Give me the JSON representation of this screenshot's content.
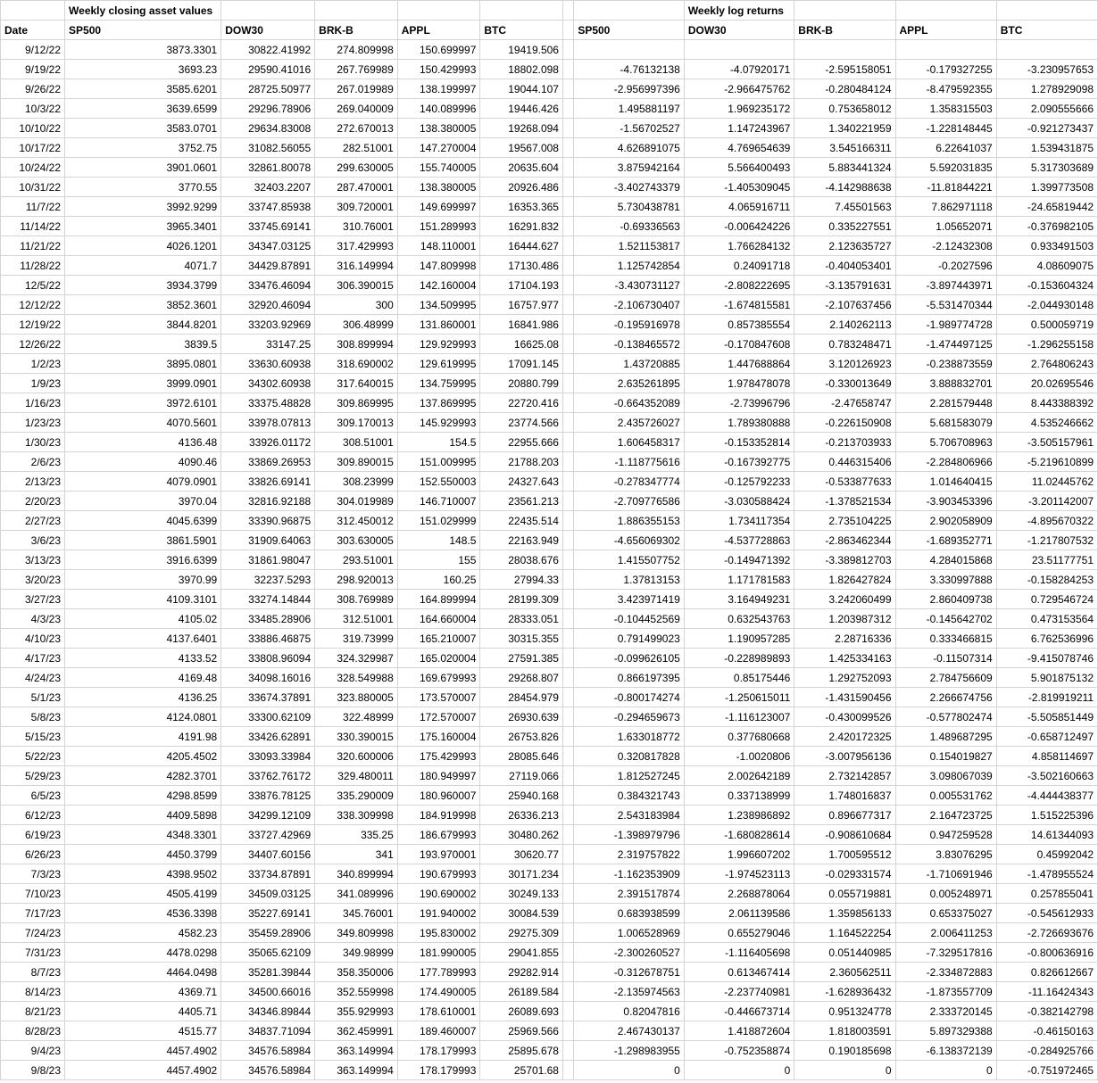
{
  "section_titles": {
    "closing": "Weekly closing asset values",
    "returns": "Weekly log returns"
  },
  "headers": {
    "date": "Date",
    "sp500": "SP500",
    "dow": "DOW30",
    "brk": "BRK-B",
    "appl": "APPL",
    "btc": "BTC"
  },
  "style": {
    "font_family": "Arial",
    "font_size_pt": 9,
    "header_font_weight": "bold",
    "grid_color": "#d4d4d4",
    "background_color": "#ffffff",
    "text_color": "#000000",
    "date_align": "right",
    "number_align": "right"
  },
  "rows": [
    {
      "date": "9/12/22",
      "c": [
        "3873.3301",
        "30822.41992",
        "274.809998",
        "150.699997",
        "19419.506"
      ],
      "r": [
        "",
        "",
        "",
        "",
        ""
      ]
    },
    {
      "date": "9/19/22",
      "c": [
        "3693.23",
        "29590.41016",
        "267.769989",
        "150.429993",
        "18802.098"
      ],
      "r": [
        "-4.76132138",
        "-4.07920171",
        "-2.595158051",
        "-0.179327255",
        "-3.230957653"
      ]
    },
    {
      "date": "9/26/22",
      "c": [
        "3585.6201",
        "28725.50977",
        "267.019989",
        "138.199997",
        "19044.107"
      ],
      "r": [
        "-2.956997396",
        "-2.966475762",
        "-0.280484124",
        "-8.479592355",
        "1.278929098"
      ]
    },
    {
      "date": "10/3/22",
      "c": [
        "3639.6599",
        "29296.78906",
        "269.040009",
        "140.089996",
        "19446.426"
      ],
      "r": [
        "1.495881197",
        "1.969235172",
        "0.753658012",
        "1.358315503",
        "2.090555666"
      ]
    },
    {
      "date": "10/10/22",
      "c": [
        "3583.0701",
        "29634.83008",
        "272.670013",
        "138.380005",
        "19268.094"
      ],
      "r": [
        "-1.56702527",
        "1.147243967",
        "1.340221959",
        "-1.228148445",
        "-0.921273437"
      ]
    },
    {
      "date": "10/17/22",
      "c": [
        "3752.75",
        "31082.56055",
        "282.51001",
        "147.270004",
        "19567.008"
      ],
      "r": [
        "4.626891075",
        "4.769654639",
        "3.545166311",
        "6.22641037",
        "1.539431875"
      ]
    },
    {
      "date": "10/24/22",
      "c": [
        "3901.0601",
        "32861.80078",
        "299.630005",
        "155.740005",
        "20635.604"
      ],
      "r": [
        "3.875942164",
        "5.566400493",
        "5.883441324",
        "5.592031835",
        "5.317303689"
      ]
    },
    {
      "date": "10/31/22",
      "c": [
        "3770.55",
        "32403.2207",
        "287.470001",
        "138.380005",
        "20926.486"
      ],
      "r": [
        "-3.402743379",
        "-1.405309045",
        "-4.142988638",
        "-11.81844221",
        "1.399773508"
      ]
    },
    {
      "date": "11/7/22",
      "c": [
        "3992.9299",
        "33747.85938",
        "309.720001",
        "149.699997",
        "16353.365"
      ],
      "r": [
        "5.730438781",
        "4.065916711",
        "7.45501563",
        "7.862971118",
        "-24.65819442"
      ]
    },
    {
      "date": "11/14/22",
      "c": [
        "3965.3401",
        "33745.69141",
        "310.76001",
        "151.289993",
        "16291.832"
      ],
      "r": [
        "-0.69336563",
        "-0.006424226",
        "0.335227551",
        "1.05652071",
        "-0.376982105"
      ]
    },
    {
      "date": "11/21/22",
      "c": [
        "4026.1201",
        "34347.03125",
        "317.429993",
        "148.110001",
        "16444.627"
      ],
      "r": [
        "1.521153817",
        "1.766284132",
        "2.123635727",
        "-2.12432308",
        "0.933491503"
      ]
    },
    {
      "date": "11/28/22",
      "c": [
        "4071.7",
        "34429.87891",
        "316.149994",
        "147.809998",
        "17130.486"
      ],
      "r": [
        "1.125742854",
        "0.24091718",
        "-0.404053401",
        "-0.2027596",
        "4.08609075"
      ]
    },
    {
      "date": "12/5/22",
      "c": [
        "3934.3799",
        "33476.46094",
        "306.390015",
        "142.160004",
        "17104.193"
      ],
      "r": [
        "-3.430731127",
        "-2.808222695",
        "-3.135791631",
        "-3.897443971",
        "-0.153604324"
      ]
    },
    {
      "date": "12/12/22",
      "c": [
        "3852.3601",
        "32920.46094",
        "300",
        "134.509995",
        "16757.977"
      ],
      "r": [
        "-2.106730407",
        "-1.674815581",
        "-2.107637456",
        "-5.531470344",
        "-2.044930148"
      ]
    },
    {
      "date": "12/19/22",
      "c": [
        "3844.8201",
        "33203.92969",
        "306.48999",
        "131.860001",
        "16841.986"
      ],
      "r": [
        "-0.195916978",
        "0.857385554",
        "2.140262113",
        "-1.989774728",
        "0.500059719"
      ]
    },
    {
      "date": "12/26/22",
      "c": [
        "3839.5",
        "33147.25",
        "308.899994",
        "129.929993",
        "16625.08"
      ],
      "r": [
        "-0.138465572",
        "-0.170847608",
        "0.783248471",
        "-1.474497125",
        "-1.296255158"
      ]
    },
    {
      "date": "1/2/23",
      "c": [
        "3895.0801",
        "33630.60938",
        "318.690002",
        "129.619995",
        "17091.145"
      ],
      "r": [
        "1.43720885",
        "1.447688864",
        "3.120126923",
        "-0.238873559",
        "2.764806243"
      ]
    },
    {
      "date": "1/9/23",
      "c": [
        "3999.0901",
        "34302.60938",
        "317.640015",
        "134.759995",
        "20880.799"
      ],
      "r": [
        "2.635261895",
        "1.978478078",
        "-0.330013649",
        "3.888832701",
        "20.02695546"
      ]
    },
    {
      "date": "1/16/23",
      "c": [
        "3972.6101",
        "33375.48828",
        "309.869995",
        "137.869995",
        "22720.416"
      ],
      "r": [
        "-0.664352089",
        "-2.73996796",
        "-2.47658747",
        "2.281579448",
        "8.443388392"
      ]
    },
    {
      "date": "1/23/23",
      "c": [
        "4070.5601",
        "33978.07813",
        "309.170013",
        "145.929993",
        "23774.566"
      ],
      "r": [
        "2.435726027",
        "1.789380888",
        "-0.226150908",
        "5.681583079",
        "4.535246662"
      ]
    },
    {
      "date": "1/30/23",
      "c": [
        "4136.48",
        "33926.01172",
        "308.51001",
        "154.5",
        "22955.666"
      ],
      "r": [
        "1.606458317",
        "-0.153352814",
        "-0.213703933",
        "5.706708963",
        "-3.505157961"
      ]
    },
    {
      "date": "2/6/23",
      "c": [
        "4090.46",
        "33869.26953",
        "309.890015",
        "151.009995",
        "21788.203"
      ],
      "r": [
        "-1.118775616",
        "-0.167392775",
        "0.446315406",
        "-2.284806966",
        "-5.219610899"
      ]
    },
    {
      "date": "2/13/23",
      "c": [
        "4079.0901",
        "33826.69141",
        "308.23999",
        "152.550003",
        "24327.643"
      ],
      "r": [
        "-0.278347774",
        "-0.125792233",
        "-0.533877633",
        "1.014640415",
        "11.02445762"
      ]
    },
    {
      "date": "2/20/23",
      "c": [
        "3970.04",
        "32816.92188",
        "304.019989",
        "146.710007",
        "23561.213"
      ],
      "r": [
        "-2.709776586",
        "-3.030588424",
        "-1.378521534",
        "-3.903453396",
        "-3.201142007"
      ]
    },
    {
      "date": "2/27/23",
      "c": [
        "4045.6399",
        "33390.96875",
        "312.450012",
        "151.029999",
        "22435.514"
      ],
      "r": [
        "1.886355153",
        "1.734117354",
        "2.735104225",
        "2.902058909",
        "-4.895670322"
      ]
    },
    {
      "date": "3/6/23",
      "c": [
        "3861.5901",
        "31909.64063",
        "303.630005",
        "148.5",
        "22163.949"
      ],
      "r": [
        "-4.656069302",
        "-4.537728863",
        "-2.863462344",
        "-1.689352771",
        "-1.217807532"
      ]
    },
    {
      "date": "3/13/23",
      "c": [
        "3916.6399",
        "31861.98047",
        "293.51001",
        "155",
        "28038.676"
      ],
      "r": [
        "1.415507752",
        "-0.149471392",
        "-3.389812703",
        "4.284015868",
        "23.51177751"
      ]
    },
    {
      "date": "3/20/23",
      "c": [
        "3970.99",
        "32237.5293",
        "298.920013",
        "160.25",
        "27994.33"
      ],
      "r": [
        "1.37813153",
        "1.171781583",
        "1.826427824",
        "3.330997888",
        "-0.158284253"
      ]
    },
    {
      "date": "3/27/23",
      "c": [
        "4109.3101",
        "33274.14844",
        "308.769989",
        "164.899994",
        "28199.309"
      ],
      "r": [
        "3.423971419",
        "3.164949231",
        "3.242060499",
        "2.860409738",
        "0.729546724"
      ]
    },
    {
      "date": "4/3/23",
      "c": [
        "4105.02",
        "33485.28906",
        "312.51001",
        "164.660004",
        "28333.051"
      ],
      "r": [
        "-0.104452569",
        "0.632543763",
        "1.203987312",
        "-0.145642702",
        "0.473153564"
      ]
    },
    {
      "date": "4/10/23",
      "c": [
        "4137.6401",
        "33886.46875",
        "319.73999",
        "165.210007",
        "30315.355"
      ],
      "r": [
        "0.791499023",
        "1.190957285",
        "2.28716336",
        "0.333466815",
        "6.762536996"
      ]
    },
    {
      "date": "4/17/23",
      "c": [
        "4133.52",
        "33808.96094",
        "324.329987",
        "165.020004",
        "27591.385"
      ],
      "r": [
        "-0.099626105",
        "-0.228989893",
        "1.425334163",
        "-0.11507314",
        "-9.415078746"
      ]
    },
    {
      "date": "4/24/23",
      "c": [
        "4169.48",
        "34098.16016",
        "328.549988",
        "169.679993",
        "29268.807"
      ],
      "r": [
        "0.866197395",
        "0.85175446",
        "1.292752093",
        "2.784756609",
        "5.901875132"
      ]
    },
    {
      "date": "5/1/23",
      "c": [
        "4136.25",
        "33674.37891",
        "323.880005",
        "173.570007",
        "28454.979"
      ],
      "r": [
        "-0.800174274",
        "-1.250615011",
        "-1.431590456",
        "2.266674756",
        "-2.819919211"
      ]
    },
    {
      "date": "5/8/23",
      "c": [
        "4124.0801",
        "33300.62109",
        "322.48999",
        "172.570007",
        "26930.639"
      ],
      "r": [
        "-0.294659673",
        "-1.116123007",
        "-0.430099526",
        "-0.577802474",
        "-5.505851449"
      ]
    },
    {
      "date": "5/15/23",
      "c": [
        "4191.98",
        "33426.62891",
        "330.390015",
        "175.160004",
        "26753.826"
      ],
      "r": [
        "1.633018772",
        "0.377680668",
        "2.420172325",
        "1.489687295",
        "-0.658712497"
      ]
    },
    {
      "date": "5/22/23",
      "c": [
        "4205.4502",
        "33093.33984",
        "320.600006",
        "175.429993",
        "28085.646"
      ],
      "r": [
        "0.320817828",
        "-1.0020806",
        "-3.007956136",
        "0.154019827",
        "4.858114697"
      ]
    },
    {
      "date": "5/29/23",
      "c": [
        "4282.3701",
        "33762.76172",
        "329.480011",
        "180.949997",
        "27119.066"
      ],
      "r": [
        "1.812527245",
        "2.002642189",
        "2.732142857",
        "3.098067039",
        "-3.502160663"
      ]
    },
    {
      "date": "6/5/23",
      "c": [
        "4298.8599",
        "33876.78125",
        "335.290009",
        "180.960007",
        "25940.168"
      ],
      "r": [
        "0.384321743",
        "0.337138999",
        "1.748016837",
        "0.005531762",
        "-4.444438377"
      ]
    },
    {
      "date": "6/12/23",
      "c": [
        "4409.5898",
        "34299.12109",
        "338.309998",
        "184.919998",
        "26336.213"
      ],
      "r": [
        "2.543183984",
        "1.238986892",
        "0.896677317",
        "2.164723725",
        "1.515225396"
      ]
    },
    {
      "date": "6/19/23",
      "c": [
        "4348.3301",
        "33727.42969",
        "335.25",
        "186.679993",
        "30480.262"
      ],
      "r": [
        "-1.398979796",
        "-1.680828614",
        "-0.908610684",
        "0.947259528",
        "14.61344093"
      ]
    },
    {
      "date": "6/26/23",
      "c": [
        "4450.3799",
        "34407.60156",
        "341",
        "193.970001",
        "30620.77"
      ],
      "r": [
        "2.319757822",
        "1.996607202",
        "1.700595512",
        "3.83076295",
        "0.45992042"
      ]
    },
    {
      "date": "7/3/23",
      "c": [
        "4398.9502",
        "33734.87891",
        "340.899994",
        "190.679993",
        "30171.234"
      ],
      "r": [
        "-1.162353909",
        "-1.974523113",
        "-0.029331574",
        "-1.710691946",
        "-1.478955524"
      ]
    },
    {
      "date": "7/10/23",
      "c": [
        "4505.4199",
        "34509.03125",
        "341.089996",
        "190.690002",
        "30249.133"
      ],
      "r": [
        "2.391517874",
        "2.268878064",
        "0.055719881",
        "0.005248971",
        "0.257855041"
      ]
    },
    {
      "date": "7/17/23",
      "c": [
        "4536.3398",
        "35227.69141",
        "345.76001",
        "191.940002",
        "30084.539"
      ],
      "r": [
        "0.683938599",
        "2.061139586",
        "1.359856133",
        "0.653375027",
        "-0.545612933"
      ]
    },
    {
      "date": "7/24/23",
      "c": [
        "4582.23",
        "35459.28906",
        "349.809998",
        "195.830002",
        "29275.309"
      ],
      "r": [
        "1.006528969",
        "0.655279046",
        "1.164522254",
        "2.006411253",
        "-2.726693676"
      ]
    },
    {
      "date": "7/31/23",
      "c": [
        "4478.0298",
        "35065.62109",
        "349.98999",
        "181.990005",
        "29041.855"
      ],
      "r": [
        "-2.300260527",
        "-1.116405698",
        "0.051440985",
        "-7.329517816",
        "-0.800636916"
      ]
    },
    {
      "date": "8/7/23",
      "c": [
        "4464.0498",
        "35281.39844",
        "358.350006",
        "177.789993",
        "29282.914"
      ],
      "r": [
        "-0.312678751",
        "0.613467414",
        "2.360562511",
        "-2.334872883",
        "0.826612667"
      ]
    },
    {
      "date": "8/14/23",
      "c": [
        "4369.71",
        "34500.66016",
        "352.559998",
        "174.490005",
        "26189.584"
      ],
      "r": [
        "-2.135974563",
        "-2.237740981",
        "-1.628936432",
        "-1.873557709",
        "-11.16424343"
      ]
    },
    {
      "date": "8/21/23",
      "c": [
        "4405.71",
        "34346.89844",
        "355.929993",
        "178.610001",
        "26089.693"
      ],
      "r": [
        "0.82047816",
        "-0.446673714",
        "0.951324778",
        "2.333720145",
        "-0.382142798"
      ]
    },
    {
      "date": "8/28/23",
      "c": [
        "4515.77",
        "34837.71094",
        "362.459991",
        "189.460007",
        "25969.566"
      ],
      "r": [
        "2.467430137",
        "1.418872604",
        "1.818003591",
        "5.897329388",
        "-0.46150163"
      ]
    },
    {
      "date": "9/4/23",
      "c": [
        "4457.4902",
        "34576.58984",
        "363.149994",
        "178.179993",
        "25895.678"
      ],
      "r": [
        "-1.298983955",
        "-0.752358874",
        "0.190185698",
        "-6.138372139",
        "-0.284925766"
      ]
    },
    {
      "date": "9/8/23",
      "c": [
        "4457.4902",
        "34576.58984",
        "363.149994",
        "178.179993",
        "25701.68"
      ],
      "r": [
        "0",
        "0",
        "0",
        "0",
        "-0.751972465"
      ]
    }
  ]
}
